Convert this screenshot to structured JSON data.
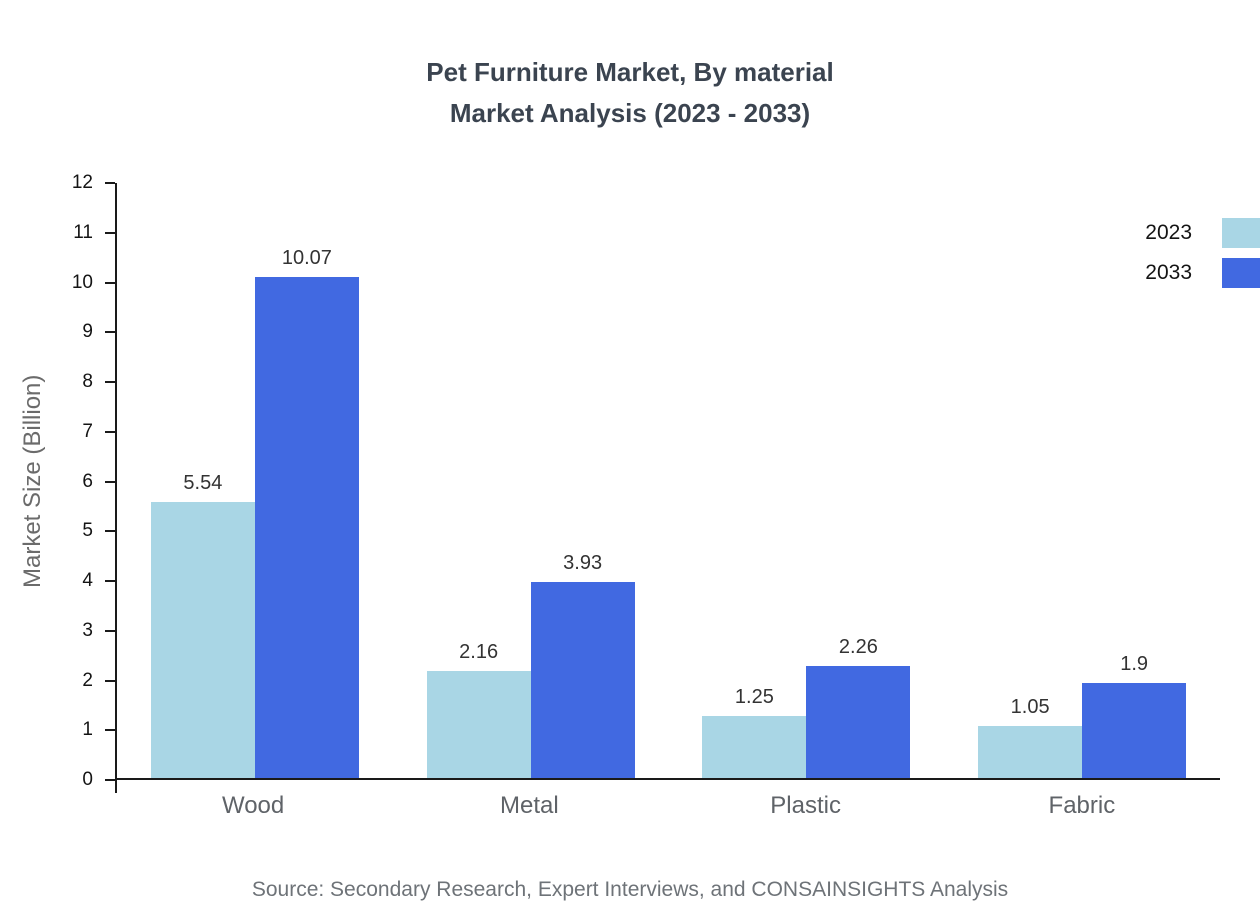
{
  "title": {
    "line1": "Pet Furniture Market, By material",
    "line2": "Market Analysis (2023 - 2033)"
  },
  "chart_data": {
    "type": "bar",
    "categories": [
      "Wood",
      "Metal",
      "Plastic",
      "Fabric"
    ],
    "series": [
      {
        "name": "2023",
        "color": "#a9d6e5",
        "values": [
          5.54,
          2.16,
          1.25,
          1.05
        ]
      },
      {
        "name": "2033",
        "color": "#4169e1",
        "values": [
          10.07,
          3.93,
          2.26,
          1.9
        ]
      }
    ],
    "title": "Pet Furniture Market, By material Market Analysis (2023 - 2033)",
    "xlabel": "",
    "ylabel": "Market Size (Billion)",
    "ylim": [
      0,
      12
    ],
    "ytick_step": 1,
    "grid": false,
    "legend_position": "top-right"
  },
  "source": "Source: Secondary Research, Expert Interviews, and CONSAINSIGHTS Analysis"
}
